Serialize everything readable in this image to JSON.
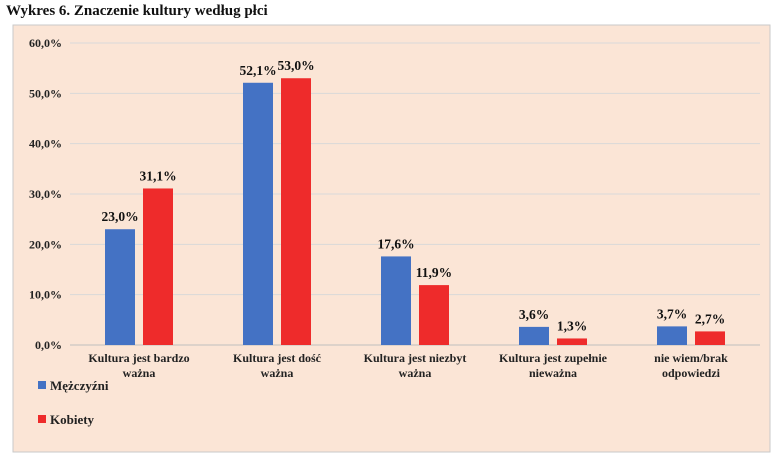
{
  "title": "Wykres 6. Znaczenie kultury według płci",
  "chart_data": {
    "type": "bar",
    "categories": [
      [
        "Kultura jest bardzo",
        "ważna"
      ],
      [
        "Kultura jest dość",
        "ważna"
      ],
      [
        "Kultura jest niezbyt",
        "ważna"
      ],
      [
        "Kultura jest zupełnie",
        "nieważna"
      ],
      [
        "nie wiem/brak",
        "odpowiedzi"
      ]
    ],
    "series": [
      {
        "name": "Mężczyźni",
        "values": [
          23.0,
          52.1,
          17.6,
          3.6,
          3.7
        ],
        "labels": [
          "23,0%",
          "52,1%",
          "17,6%",
          "3,6%",
          "3,7%"
        ],
        "color": "#4472C4"
      },
      {
        "name": "Kobiety",
        "values": [
          31.1,
          53.0,
          11.9,
          1.3,
          2.7
        ],
        "labels": [
          "31,1%",
          "53,0%",
          "11,9%",
          "1,3%",
          "2,7%"
        ],
        "color": "#EE2B2B"
      }
    ],
    "yticks": [
      "0,0%",
      "10,0%",
      "20,0%",
      "30,0%",
      "40,0%",
      "50,0%",
      "60,0%"
    ],
    "ylim": [
      0,
      60
    ],
    "grid": true,
    "legend": "bottom-left",
    "background": "#FBE5D6"
  }
}
